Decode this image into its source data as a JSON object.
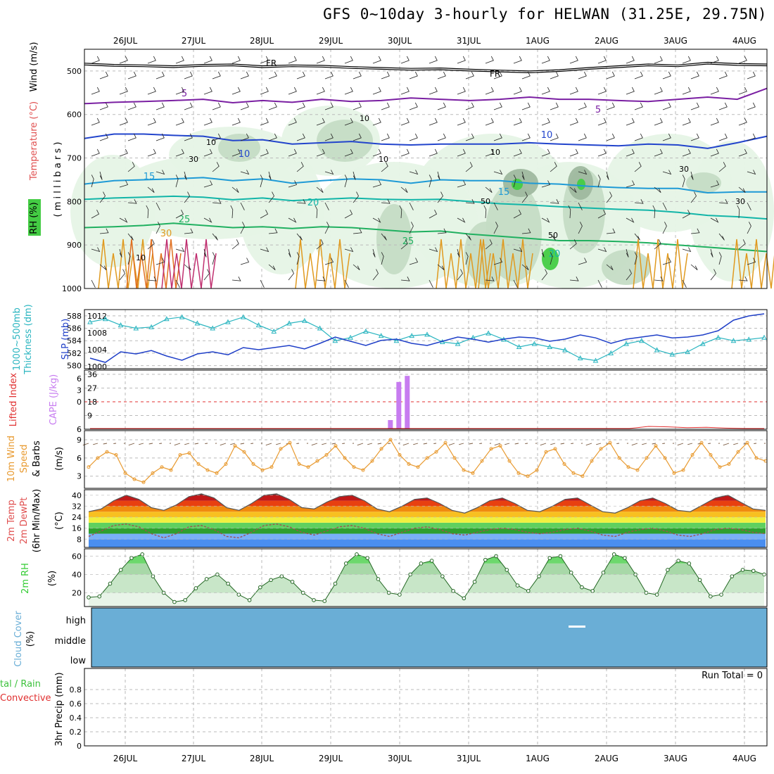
{
  "title": "GFS 0~10day 3-hourly for HELWAN (31.25E, 29.75N)",
  "date_labels": [
    "26JUL",
    "27JUL",
    "28JUL",
    "29JUL",
    "30JUL",
    "31JUL",
    "1AUG",
    "2AUG",
    "3AUG",
    "4AUG"
  ],
  "colors": {
    "temp_iso": "#7a1fa2",
    "temp_10": "#2244cc",
    "temp_15": "#1e9ad6",
    "temp_20": "#12b5a8",
    "temp_25": "#20b060",
    "temp_30": "#e09a20",
    "rh_light": "#e6f4e6",
    "rh_mid": "#c5dcc5",
    "rh_dark": "#9fb89f",
    "rh_bright": "#44cc44",
    "thickness": "#2ab5c0",
    "slp": "#1f3fc8",
    "lifted": "#e03030",
    "cape": "#c77cf0",
    "wind": "#e89a30",
    "barb": "#7a5a40",
    "rh2m": "#33cc33",
    "cloud": "#6aaed6"
  },
  "labels": {
    "upper_rh": "RH (%)",
    "upper_temp": "Temperature (°C)",
    "upper_wind": "Wind (m/s)",
    "upper_axis": "( m i l l i b a r s )",
    "fr": "FR",
    "thick_1": "1000~500mb",
    "thick_2": "Thickness (dm)",
    "slp": "SLP (mb)",
    "lifted": "Lifted Index",
    "cape": "CAPE (J/kg)",
    "wind_1": "10m Wind",
    "wind_2": "Speed",
    "wind_3": "& Barbs",
    "wind_unit": "(m/s)",
    "temp_1": "2m Temp",
    "temp_2": "2m DewPt",
    "temp_3": "(6hr Min/Max)",
    "temp_unit": "(°C)",
    "rh_1": "2m RH",
    "rh_unit": "(%)",
    "cloud_1": "Cloud Cover",
    "cloud_unit": "(%)",
    "precip_1": "tal / Rain",
    "precip_2": "Convective",
    "precip_3": "3hr Precip (mm)",
    "run_total": "Run Total = 0"
  },
  "chart_data": [
    {
      "type": "heatmap",
      "panel": "upper-air",
      "y_axis": "millibars",
      "ylim": [
        1000,
        450
      ],
      "yticks": [
        500,
        600,
        700,
        800,
        900,
        1000
      ],
      "isotherm_labels": [
        "5",
        "5",
        "10",
        "10",
        "15",
        "15",
        "20",
        "20",
        "25",
        "25",
        "30"
      ],
      "rh_labels": [
        "10",
        "10",
        "10",
        "30",
        "10",
        "50",
        "50",
        "30",
        "30",
        "10"
      ],
      "isotherms": [
        {
          "level": 5,
          "pressure": [
            575,
            572,
            570,
            568,
            565,
            573,
            568,
            572,
            565,
            570,
            568,
            562,
            565,
            568,
            565,
            560,
            565,
            565,
            568,
            570,
            565,
            560,
            565,
            540
          ]
        },
        {
          "level": 10,
          "pressure": [
            655,
            645,
            645,
            648,
            650,
            660,
            658,
            668,
            665,
            662,
            668,
            670,
            668,
            668,
            668,
            665,
            668,
            670,
            672,
            668,
            670,
            678,
            665,
            650
          ]
        },
        {
          "level": 15,
          "pressure": [
            760,
            752,
            750,
            748,
            745,
            752,
            748,
            758,
            752,
            748,
            750,
            758,
            750,
            752,
            752,
            758,
            760,
            765,
            768,
            770,
            770,
            780,
            778,
            778
          ]
        },
        {
          "level": 20,
          "pressure": [
            795,
            792,
            790,
            788,
            790,
            796,
            792,
            798,
            795,
            792,
            795,
            796,
            795,
            800,
            805,
            808,
            812,
            815,
            818,
            820,
            825,
            832,
            835,
            840
          ]
        },
        {
          "level": 25,
          "pressure": [
            860,
            858,
            855,
            850,
            855,
            860,
            858,
            862,
            858,
            860,
            865,
            870,
            868,
            875,
            880,
            885,
            890,
            890,
            892,
            895,
            900,
            905,
            910,
            915
          ]
        }
      ]
    },
    {
      "type": "line",
      "panel": "thickness-slp",
      "y_left": {
        "label": "1000~500mb Thickness (dm)",
        "ticks": [
          580,
          582,
          584,
          586,
          588
        ],
        "ylim": [
          579.5,
          589
        ]
      },
      "y_right": {
        "label": "SLP (mb)",
        "ticks": [
          1000,
          1004,
          1008,
          1012
        ],
        "ylim": [
          999.5,
          1013.5
        ]
      },
      "series": [
        {
          "name": "1000~500mb Thickness",
          "axis": "left",
          "values": [
            587.0,
            587.5,
            586.5,
            586.0,
            586.2,
            587.5,
            587.8,
            586.8,
            586.0,
            587.0,
            587.8,
            586.5,
            585.5,
            586.8,
            587.2,
            586.0,
            584.0,
            584.5,
            585.5,
            584.8,
            584.0,
            584.8,
            585.0,
            583.8,
            583.5,
            584.5,
            585.2,
            584.2,
            583.0,
            583.5,
            583.0,
            582.5,
            581.2,
            580.8,
            582.0,
            583.5,
            584.0,
            582.5,
            581.8,
            582.2,
            583.5,
            584.5,
            584.0,
            584.2,
            584.5
          ]
        },
        {
          "name": "SLP",
          "axis": "right",
          "values": [
            1002.0,
            1001.0,
            1003.5,
            1003.0,
            1003.8,
            1002.5,
            1001.5,
            1003.0,
            1003.5,
            1002.8,
            1004.5,
            1004.0,
            1004.5,
            1005.0,
            1004.2,
            1005.5,
            1007.0,
            1006.0,
            1005.0,
            1006.2,
            1006.5,
            1005.5,
            1005.0,
            1006.0,
            1007.0,
            1006.5,
            1005.8,
            1006.5,
            1007.0,
            1006.8,
            1006.0,
            1006.5,
            1007.5,
            1006.8,
            1005.5,
            1006.5,
            1007.0,
            1007.5,
            1006.8,
            1007.0,
            1007.5,
            1008.5,
            1011.0,
            1012.0,
            1012.5
          ]
        }
      ]
    },
    {
      "type": "bar",
      "panel": "lifted-cape",
      "y_left": {
        "label": "Lifted Index",
        "ticks": [
          6,
          0,
          -3,
          -6
        ],
        "tick_labels": [
          "6",
          "0",
          "3",
          "6"
        ]
      },
      "y_right": {
        "label": "CAPE (J/kg)",
        "ticks": [
          9,
          18,
          27,
          36
        ],
        "ylim": [
          0,
          36
        ]
      },
      "cape_bars": [
        {
          "time_index": 27,
          "value": 6
        },
        {
          "time_index": 28,
          "value": 31
        },
        {
          "time_index": 29,
          "value": 35
        }
      ],
      "lifted_index": {
        "values": [
          6,
          6,
          6,
          6,
          6,
          6,
          6,
          6,
          6,
          6,
          6,
          6,
          6,
          6,
          6,
          6,
          6,
          6,
          6,
          6,
          6,
          6,
          6,
          6,
          6,
          6,
          6,
          6,
          6,
          5.5,
          5.6,
          5.8,
          5.7,
          5.9,
          6,
          6
        ]
      }
    },
    {
      "type": "line",
      "panel": "10m-wind",
      "y_axis": {
        "label": "10m Wind Speed & Barbs (m/s)",
        "ticks": [
          3,
          6,
          9
        ],
        "ylim": [
          1,
          10.5
        ]
      },
      "series": [
        {
          "name": "10m Wind Speed",
          "values": [
            4.5,
            6.0,
            7.0,
            6.5,
            3.5,
            2.5,
            2.0,
            3.5,
            4.5,
            4.0,
            6.5,
            6.8,
            5.0,
            4.0,
            3.5,
            5.0,
            8.0,
            7.0,
            5.0,
            4.0,
            4.5,
            7.5,
            8.5,
            5.0,
            4.5,
            5.5,
            6.5,
            8.0,
            6.0,
            4.5,
            4.0,
            5.5,
            7.5,
            9.0,
            6.5,
            5.0,
            4.5,
            6.0,
            7.0,
            8.5,
            6.0,
            4.0,
            3.5,
            5.5,
            7.5,
            8.0,
            5.5,
            3.5,
            3.0,
            4.0,
            7.0,
            7.5,
            5.0,
            3.5,
            3.0,
            5.5,
            7.5,
            8.5,
            6.0,
            4.5,
            4.0,
            6.0,
            8.0,
            6.0,
            3.5,
            4.0,
            6.5,
            8.5,
            6.5,
            4.5,
            5.0,
            7.0,
            8.5,
            6.0,
            5.5
          ]
        }
      ]
    },
    {
      "type": "area",
      "panel": "2m-temp",
      "y_axis": {
        "label": "2m Temp 2m DewPt (6hr Min/Max) (°C)",
        "ticks": [
          8,
          16,
          24,
          32,
          40
        ],
        "ylim": [
          2,
          44
        ]
      },
      "series": [
        {
          "name": "2m Temp",
          "values": [
            28,
            30,
            36,
            40,
            37,
            31,
            29,
            33,
            39,
            41,
            38,
            31,
            29,
            34,
            40,
            41,
            37,
            31,
            30,
            35,
            39,
            40,
            36,
            30,
            28,
            32,
            37,
            38,
            34,
            29,
            27,
            31,
            36,
            38,
            34,
            29,
            28,
            32,
            37,
            38,
            33,
            28,
            27,
            31,
            36,
            38,
            34,
            29,
            28,
            33,
            38,
            40,
            35,
            30,
            29
          ]
        },
        {
          "name": "2m DewPt",
          "values": [
            10,
            14,
            18,
            19,
            17,
            12,
            9,
            12,
            17,
            18,
            15,
            10,
            9,
            13,
            18,
            19,
            17,
            13,
            11,
            14,
            17,
            18,
            16,
            12,
            10,
            13,
            16,
            17,
            15,
            12,
            11,
            13,
            15,
            16,
            15,
            13,
            12,
            13,
            15,
            16,
            14,
            11,
            10,
            13,
            15,
            16,
            14,
            11,
            10,
            12,
            15,
            16,
            15,
            13,
            12
          ]
        }
      ]
    },
    {
      "type": "area",
      "panel": "2m-rh",
      "y_axis": {
        "label": "2m RH (%)",
        "ticks": [
          20,
          40,
          60
        ],
        "ylim": [
          5,
          68
        ]
      },
      "series": [
        {
          "name": "2m RH",
          "values": [
            15,
            16,
            30,
            45,
            58,
            62,
            38,
            20,
            10,
            12,
            25,
            35,
            40,
            30,
            18,
            12,
            26,
            34,
            38,
            32,
            20,
            12,
            11,
            30,
            52,
            62,
            58,
            35,
            20,
            18,
            40,
            52,
            55,
            38,
            22,
            14,
            32,
            56,
            60,
            45,
            28,
            22,
            38,
            58,
            60,
            42,
            26,
            22,
            42,
            62,
            58,
            40,
            20,
            18,
            45,
            55,
            52,
            34,
            16,
            18,
            38,
            45,
            44,
            40
          ]
        }
      ]
    },
    {
      "type": "heatmap",
      "panel": "cloud-cover",
      "y_axis": {
        "label": "Cloud Cover (%)",
        "tick_labels": [
          "high",
          "middle",
          "low"
        ]
      }
    },
    {
      "type": "bar",
      "panel": "3hr-precip",
      "y_axis": {
        "label": "3hr Precip (mm)",
        "ticks": [
          0,
          0.2,
          0.4,
          0.6,
          0.8
        ],
        "ylim": [
          0,
          1
        ]
      },
      "values": [],
      "annotation": "Run Total = 0"
    }
  ]
}
